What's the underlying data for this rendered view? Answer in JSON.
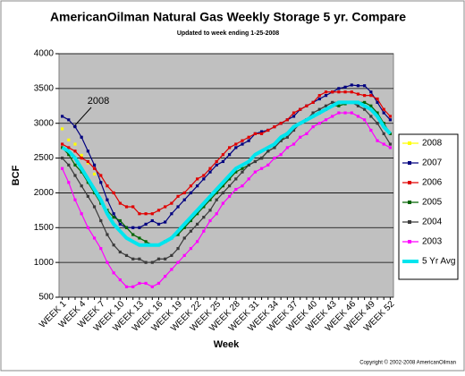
{
  "chart_data": {
    "type": "line",
    "title": "AmericanOilman Natural Gas Weekly Storage 5 yr. Compare",
    "subtitle": "Updated to week ending 1-25-2008",
    "x_label": "Week",
    "y_label": "BCF",
    "annotation": "2008",
    "copyright": "Copyright © 2002-2008 AmericanOilman",
    "categories": [
      "WEEK 1",
      null,
      null,
      "WEEK 4",
      null,
      null,
      "WEEK 7",
      null,
      null,
      "WEEK 10",
      null,
      null,
      "WEEK 13",
      null,
      null,
      "WEEK 16",
      null,
      null,
      "WEEK 19",
      null,
      null,
      "WEEK 22",
      null,
      null,
      "WEEK 25",
      null,
      null,
      "WEEK 28",
      null,
      null,
      "WEEK 31",
      null,
      null,
      "WEEK 34",
      null,
      null,
      "WEEK 37",
      null,
      null,
      "WEEK 40",
      null,
      null,
      "WEEK 43",
      null,
      null,
      "WEEK 46",
      null,
      null,
      "WEEK 49",
      null,
      null,
      "WEEK 52"
    ],
    "ylim": [
      500,
      4000
    ],
    "yticks": [
      500,
      1000,
      1500,
      2000,
      2500,
      3000,
      3500,
      4000
    ],
    "grid": true,
    "legend": "right",
    "series": [
      {
        "name": "2008",
        "color": "#ffff00",
        "marker": true,
        "values": [
          2920,
          2760,
          2700,
          2540,
          2430,
          2270,
          null,
          null,
          null,
          null,
          null,
          null,
          null,
          null,
          null,
          null,
          null,
          null,
          null,
          null,
          null,
          null,
          null,
          null,
          null,
          null,
          null,
          null,
          null,
          null,
          null,
          null,
          null,
          null,
          null,
          null,
          null,
          null,
          null,
          null,
          null,
          null,
          null,
          null,
          null,
          null,
          null,
          null,
          null,
          null,
          null,
          null
        ]
      },
      {
        "name": "2007",
        "color": "#000080",
        "marker": true,
        "values": [
          3100,
          3050,
          2950,
          2800,
          2600,
          2400,
          2150,
          1900,
          1700,
          1550,
          1500,
          1500,
          1500,
          1550,
          1600,
          1550,
          1580,
          1700,
          1800,
          1900,
          2000,
          2100,
          2200,
          2300,
          2400,
          2450,
          2550,
          2650,
          2700,
          2750,
          2850,
          2880,
          2900,
          2950,
          3000,
          3050,
          3100,
          3200,
          3250,
          3300,
          3350,
          3400,
          3450,
          3500,
          3520,
          3550,
          3540,
          3540,
          3450,
          3300,
          3150,
          3050
        ]
      },
      {
        "name": "2006",
        "color": "#e00000",
        "marker": true,
        "values": [
          2700,
          2650,
          2600,
          2500,
          2450,
          2350,
          2250,
          2100,
          2000,
          1850,
          1800,
          1800,
          1700,
          1700,
          1700,
          1750,
          1800,
          1850,
          1950,
          2000,
          2100,
          2200,
          2250,
          2350,
          2450,
          2550,
          2650,
          2700,
          2750,
          2800,
          2850,
          2850,
          2900,
          2950,
          3000,
          3050,
          3150,
          3200,
          3250,
          3300,
          3400,
          3450,
          3450,
          3450,
          3450,
          3450,
          3420,
          3400,
          3400,
          3350,
          3200,
          3100
        ]
      },
      {
        "name": "2005",
        "color": "#006400",
        "marker": true,
        "values": [
          2650,
          2550,
          2400,
          2300,
          2150,
          2000,
          1850,
          1750,
          1650,
          1600,
          1500,
          1400,
          1350,
          1300,
          1250,
          1250,
          1300,
          1350,
          1400,
          1500,
          1600,
          1700,
          1800,
          1900,
          2000,
          2100,
          2200,
          2300,
          2350,
          2400,
          2450,
          2500,
          2600,
          2650,
          2750,
          2850,
          2950,
          3000,
          3050,
          3100,
          3150,
          3200,
          3250,
          3250,
          3280,
          3300,
          3300,
          3300,
          3250,
          3150,
          3000,
          2850
        ]
      },
      {
        "name": "2004",
        "color": "#3a3a3a",
        "marker": true,
        "values": [
          2500,
          2400,
          2250,
          2100,
          1950,
          1800,
          1600,
          1400,
          1250,
          1150,
          1100,
          1050,
          1050,
          1000,
          1000,
          1050,
          1050,
          1100,
          1200,
          1350,
          1450,
          1550,
          1650,
          1750,
          1900,
          2000,
          2100,
          2200,
          2300,
          2400,
          2450,
          2500,
          2600,
          2650,
          2750,
          2800,
          2900,
          3000,
          3050,
          3150,
          3200,
          3250,
          3300,
          3300,
          3300,
          3300,
          3250,
          3200,
          3100,
          3000,
          2850,
          2700
        ]
      },
      {
        "name": "2003",
        "color": "#ff00ff",
        "marker": true,
        "values": [
          2350,
          2150,
          1900,
          1700,
          1500,
          1350,
          1200,
          1000,
          850,
          750,
          650,
          650,
          700,
          700,
          650,
          700,
          800,
          900,
          1000,
          1100,
          1200,
          1300,
          1450,
          1600,
          1700,
          1850,
          1950,
          2050,
          2100,
          2200,
          2300,
          2350,
          2400,
          2500,
          2550,
          2650,
          2700,
          2800,
          2850,
          2950,
          3000,
          3050,
          3100,
          3150,
          3150,
          3150,
          3100,
          3050,
          2900,
          2750,
          2700,
          2650
        ]
      },
      {
        "name": "5 Yr Avg",
        "color": "#00e5ee",
        "marker": false,
        "values": [
          2650,
          2600,
          2500,
          2350,
          2200,
          2050,
          1900,
          1700,
          1550,
          1450,
          1350,
          1300,
          1250,
          1250,
          1250,
          1250,
          1300,
          1350,
          1450,
          1550,
          1650,
          1750,
          1850,
          1950,
          2050,
          2150,
          2250,
          2350,
          2400,
          2450,
          2550,
          2600,
          2650,
          2700,
          2800,
          2850,
          2950,
          3000,
          3050,
          3100,
          3150,
          3200,
          3250,
          3300,
          3300,
          3300,
          3300,
          3250,
          3200,
          3100,
          2950,
          2850
        ]
      }
    ]
  }
}
